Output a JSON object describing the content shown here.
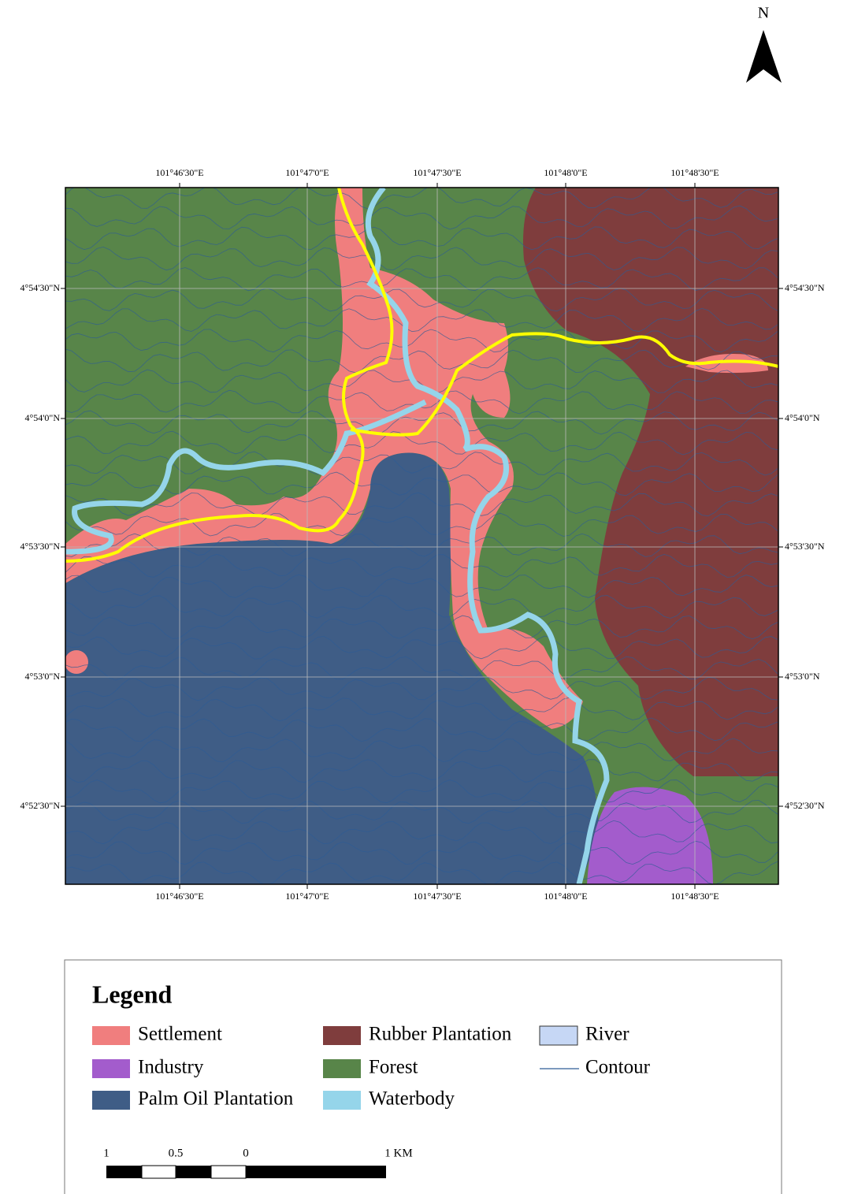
{
  "north_arrow": "N",
  "map": {
    "top_labels": [
      "101°46'30\"E",
      "101°47'0\"E",
      "101°47'30\"E",
      "101°48'0\"E",
      "101°48'30\"E"
    ],
    "bottom_labels": [
      "101°46'30\"E",
      "101°47'0\"E",
      "101°47'30\"E",
      "101°48'0\"E",
      "101°48'30\"E"
    ],
    "left_labels": [
      "4°54'30\"N",
      "4°54'0\"N",
      "4°53'30\"N",
      "4°53'0\"N",
      "4°52'30\"N"
    ],
    "right_labels": [
      "4°54'30\"N",
      "4°54'0\"N",
      "4°53'30\"N",
      "4°53'0\"N",
      "4°52'30\"N"
    ]
  },
  "legend": {
    "title": "Legend",
    "items": [
      {
        "label": "Settlement",
        "color": "#f07e7e",
        "style": "box"
      },
      {
        "label": "Industry",
        "color": "#a35ccc",
        "style": "box"
      },
      {
        "label": "Palm Oil Plantation",
        "color": "#3f5d86",
        "style": "box"
      },
      {
        "label": "Rubber Plantation",
        "color": "#7f3d3d",
        "style": "box"
      },
      {
        "label": "Forest",
        "color": "#588549",
        "style": "box"
      },
      {
        "label": "Waterbody",
        "color": "#95d5ea",
        "style": "box"
      },
      {
        "label": "River",
        "color": "#c6d7f5",
        "style": "box"
      },
      {
        "label": "Contour",
        "color": "#2e5c96",
        "style": "line"
      }
    ]
  },
  "scale_bar": {
    "labels": [
      "1",
      "0.5",
      "0",
      "1 KM"
    ]
  }
}
